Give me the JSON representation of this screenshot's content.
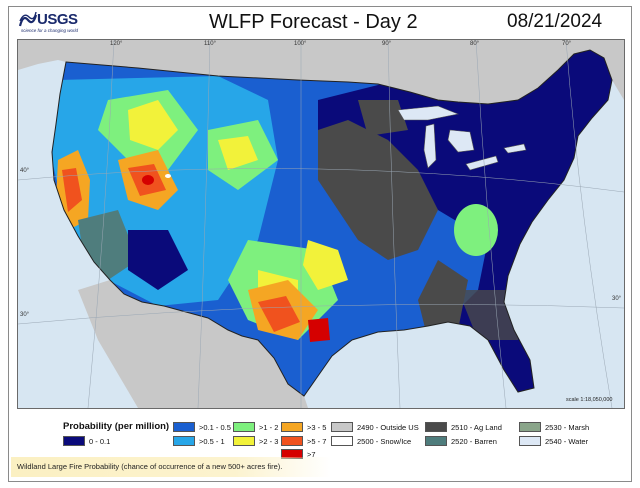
{
  "logo": {
    "name": "USGS",
    "tagline": "science for a changing world"
  },
  "title": "WLFP Forecast - Day 2",
  "date": "08/21/2024",
  "graticule": {
    "longitudes": [
      "120°",
      "110°",
      "100°",
      "90°",
      "80°",
      "70°"
    ],
    "latitudes": [
      "40°",
      "30°"
    ]
  },
  "scale": "scale 1:18,050,000",
  "legend": {
    "title": "Probability (per million)",
    "probability_classes": [
      {
        "label": "0 - 0.1",
        "color": "#0a0a7a"
      },
      {
        "label": ">0.1 - 0.5",
        "color": "#1a5fd0"
      },
      {
        "label": ">0.5 - 1",
        "color": "#27a6e8"
      },
      {
        "label": ">1 - 2",
        "color": "#7ef07e"
      },
      {
        "label": ">2 - 3",
        "color": "#f2f23a"
      },
      {
        "label": ">3 - 5",
        "color": "#f5a623"
      },
      {
        "label": ">5 - 7",
        "color": "#f0521e"
      },
      {
        "label": ">7",
        "color": "#d50000"
      }
    ],
    "landcover_classes": [
      {
        "label": "2490 - Outside US",
        "color": "#c8c8c8"
      },
      {
        "label": "2500 - Snow/Ice",
        "color": "#ffffff"
      },
      {
        "label": "2510 - Ag Land",
        "color": "#4a4a4a"
      },
      {
        "label": "2520 - Barren",
        "color": "#4f7d7d"
      },
      {
        "label": "2530 - Marsh",
        "color": "#8aa58a"
      },
      {
        "label": "2540 - Water",
        "color": "#dde8f5"
      }
    ]
  },
  "footer": "Wildland Large Fire Probability (chance of occurrence of a new 500+ acres fire)."
}
